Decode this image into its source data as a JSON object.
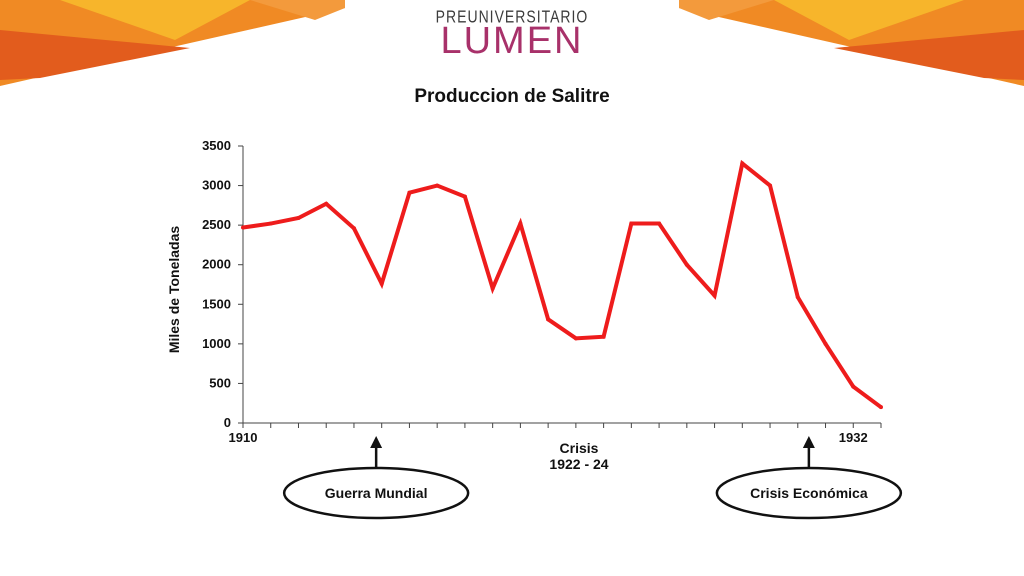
{
  "logo": {
    "top_text": "PREUNIVERSITARIO",
    "main_text": "LUMEN"
  },
  "colors": {
    "line": "#ee1c1c",
    "banner_orange": "#f08a24",
    "banner_dark": "#e25c1d",
    "banner_yellow": "#f7b52b",
    "logo_accent": "#a8316a"
  },
  "chart_data": {
    "type": "line",
    "title": "Produccion de Salitre",
    "xlabel": "",
    "ylabel": "Miles de Toneladas",
    "ylim": [
      0,
      3500
    ],
    "yticks": [
      0,
      500,
      1000,
      1500,
      2000,
      2500,
      3000,
      3500
    ],
    "x": [
      1910,
      1911,
      1912,
      1913,
      1914,
      1915,
      1916,
      1917,
      1918,
      1919,
      1920,
      1921,
      1922,
      1923,
      1924,
      1925,
      1926,
      1927,
      1928,
      1929,
      1930,
      1931,
      1932,
      1933
    ],
    "xlim": [
      1910,
      1933
    ],
    "xtick_labels": [
      {
        "x": 1910,
        "label": "1910"
      },
      {
        "x": 1932,
        "label": "1932"
      }
    ],
    "series": [
      {
        "values": [
          2470,
          2520,
          2590,
          2770,
          2460,
          1760,
          2910,
          3000,
          2860,
          1700,
          2520,
          1310,
          1070,
          1090,
          2520,
          2520,
          2000,
          1610,
          3280,
          3000,
          1590,
          1000,
          460,
          200
        ]
      }
    ],
    "grid": false,
    "annotations": {
      "crisis_line1": "Crisis",
      "crisis_line2": "1922 - 24",
      "war_label": "Guerra Mundial",
      "war_x": 1914.8,
      "economic_label": "Crisis Económica",
      "economic_x": 1930.4
    }
  }
}
